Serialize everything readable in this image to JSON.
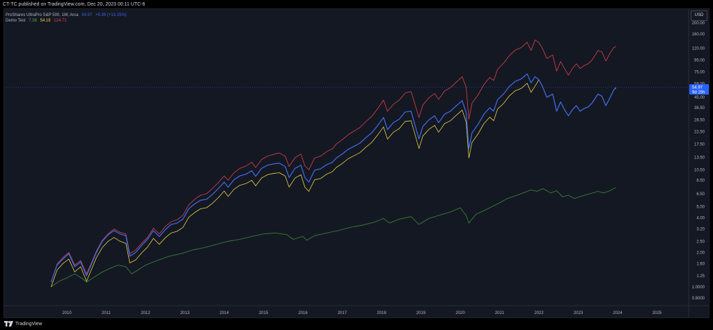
{
  "header": {
    "published_text": "CT-TC published on TradingView.com, Dec 20, 2023 00:11 UTC-6"
  },
  "legend": {
    "main": {
      "name": "ProShares UltraPro S&P 500, 1W, Arca",
      "price": "54.97",
      "change": "+6.39 (+13.15%)"
    },
    "indicator": {
      "name": "Demo Test",
      "v1": "7.36",
      "v2": "54.19",
      "v3": "124.71"
    }
  },
  "currency_button": "USD",
  "price_badge": {
    "price": "54.97",
    "countdown": "9d 15h"
  },
  "footer": {
    "brand": "TradingView"
  },
  "colors": {
    "background": "#141823",
    "red": "#e0424d",
    "blue": "#3d67e0",
    "yellow": "#e8d44a",
    "green": "#3e8a3a",
    "text": "#d1d4dc",
    "axis_text": "#b2b5be",
    "price_line": "#2962ff"
  },
  "chart_data": {
    "type": "line",
    "title": "",
    "xlabel": "",
    "ylabel": "",
    "y_scale": "log",
    "ylim": [
      0.7,
      250
    ],
    "xlim": [
      2009.5,
      2025.6
    ],
    "grid": false,
    "legend_placement": "top-left",
    "x_ticks": [
      "2010",
      "2011",
      "2012",
      "2013",
      "2014",
      "2015",
      "2016",
      "2017",
      "2018",
      "2019",
      "2020",
      "2021",
      "2022",
      "2023",
      "2024",
      "2025"
    ],
    "y_ticks": [
      "200.00",
      "160.00",
      "120.00",
      "95.00",
      "75.00",
      "59.00",
      "45.00",
      "36.50",
      "28.50",
      "22.50",
      "17.50",
      "13.50",
      "10.50",
      "8.50",
      "6.50",
      "5.00",
      "4.00",
      "3.20",
      "2.50",
      "2.00",
      "1.60",
      "1.25",
      "1.0000",
      "0.8000"
    ],
    "series": [
      {
        "name": "ProShares UltraPro S&P 500, 1W, Arca",
        "color": "#3d67e0",
        "x": [
          2009.6,
          2009.75,
          2009.9,
          2010.05,
          2010.2,
          2010.35,
          2010.5,
          2010.6,
          2010.75,
          2010.9,
          2011.05,
          2011.2,
          2011.35,
          2011.5,
          2011.6,
          2011.75,
          2011.9,
          2012.05,
          2012.2,
          2012.35,
          2012.5,
          2012.65,
          2012.8,
          2012.95,
          2013.1,
          2013.25,
          2013.4,
          2013.55,
          2013.7,
          2013.85,
          2014.0,
          2014.1,
          2014.25,
          2014.4,
          2014.55,
          2014.7,
          2014.8,
          2014.95,
          2015.1,
          2015.25,
          2015.4,
          2015.55,
          2015.65,
          2015.8,
          2015.95,
          2016.05,
          2016.15,
          2016.3,
          2016.45,
          2016.6,
          2016.75,
          2016.85,
          2017.0,
          2017.15,
          2017.3,
          2017.45,
          2017.6,
          2017.75,
          2017.9,
          2018.05,
          2018.15,
          2018.3,
          2018.45,
          2018.6,
          2018.75,
          2018.95,
          2019.05,
          2019.2,
          2019.35,
          2019.45,
          2019.6,
          2019.75,
          2019.9,
          2020.05,
          2020.15,
          2020.22,
          2020.3,
          2020.45,
          2020.6,
          2020.75,
          2020.85,
          2020.95,
          2021.1,
          2021.25,
          2021.4,
          2021.55,
          2021.7,
          2021.8,
          2021.9,
          2022.0,
          2022.1,
          2022.2,
          2022.35,
          2022.45,
          2022.55,
          2022.65,
          2022.75,
          2022.85,
          2022.95,
          2023.05,
          2023.15,
          2023.25,
          2023.35,
          2023.5,
          2023.6,
          2023.7,
          2023.8,
          2023.9,
          2023.96
        ],
        "values": [
          1.1,
          1.55,
          1.75,
          1.95,
          1.5,
          1.65,
          1.25,
          1.5,
          2.0,
          2.5,
          2.85,
          3.1,
          2.9,
          2.8,
          1.85,
          2.0,
          2.3,
          2.6,
          3.1,
          2.75,
          3.15,
          3.5,
          3.6,
          3.9,
          4.8,
          5.3,
          5.7,
          5.8,
          6.4,
          7.2,
          8.2,
          7.4,
          8.6,
          9.3,
          9.6,
          10.3,
          9.2,
          10.8,
          11.5,
          11.8,
          12.0,
          11.2,
          9.0,
          10.8,
          11.5,
          9.0,
          8.2,
          10.4,
          10.7,
          11.6,
          12.2,
          13.3,
          14.4,
          15.8,
          16.8,
          17.9,
          20.0,
          22.0,
          25.5,
          30.0,
          23.5,
          27.0,
          29.0,
          33.5,
          34.0,
          19.5,
          25.0,
          28.5,
          31.0,
          27.0,
          32.0,
          34.0,
          38.0,
          42.0,
          33.0,
          16.0,
          22.0,
          26.0,
          32.0,
          36.5,
          34.0,
          43.0,
          48.0,
          56.0,
          62.0,
          65.0,
          72.0,
          60.0,
          68.0,
          64.0,
          55.0,
          45.0,
          48.0,
          34.0,
          41.0,
          35.0,
          31.0,
          35.0,
          38.0,
          34.0,
          36.0,
          37.0,
          40.0,
          48.0,
          46.0,
          38.0,
          44.0,
          52.0,
          54.97
        ]
      },
      {
        "name": "Demo Test",
        "color": "#e0424d",
        "x": [
          2009.6,
          2009.75,
          2009.9,
          2010.05,
          2010.2,
          2010.35,
          2010.5,
          2010.6,
          2010.75,
          2010.9,
          2011.05,
          2011.2,
          2011.35,
          2011.5,
          2011.6,
          2011.75,
          2011.9,
          2012.05,
          2012.2,
          2012.35,
          2012.5,
          2012.65,
          2012.8,
          2012.95,
          2013.1,
          2013.25,
          2013.4,
          2013.55,
          2013.7,
          2013.85,
          2014.0,
          2014.1,
          2014.25,
          2014.4,
          2014.55,
          2014.7,
          2014.8,
          2014.95,
          2015.1,
          2015.25,
          2015.4,
          2015.55,
          2015.65,
          2015.8,
          2015.95,
          2016.05,
          2016.15,
          2016.3,
          2016.45,
          2016.6,
          2016.75,
          2016.85,
          2017.0,
          2017.15,
          2017.3,
          2017.45,
          2017.6,
          2017.75,
          2017.9,
          2018.05,
          2018.15,
          2018.3,
          2018.45,
          2018.6,
          2018.75,
          2018.95,
          2019.05,
          2019.2,
          2019.35,
          2019.45,
          2019.6,
          2019.75,
          2019.9,
          2020.05,
          2020.15,
          2020.22,
          2020.3,
          2020.45,
          2020.6,
          2020.75,
          2020.85,
          2020.95,
          2021.1,
          2021.25,
          2021.4,
          2021.55,
          2021.7,
          2021.8,
          2021.9,
          2022.0,
          2022.1,
          2022.2,
          2022.35,
          2022.45,
          2022.55,
          2022.65,
          2022.75,
          2022.85,
          2022.95,
          2023.05,
          2023.15,
          2023.25,
          2023.35,
          2023.5,
          2023.6,
          2023.7,
          2023.8,
          2023.9,
          2023.96
        ],
        "values": [
          1.1,
          1.58,
          1.8,
          2.0,
          1.55,
          1.7,
          1.3,
          1.55,
          2.05,
          2.55,
          2.9,
          3.2,
          3.0,
          2.9,
          1.95,
          2.1,
          2.4,
          2.7,
          3.25,
          2.9,
          3.35,
          3.7,
          3.85,
          4.2,
          5.2,
          5.8,
          6.3,
          6.5,
          7.2,
          8.1,
          9.3,
          8.5,
          9.9,
          10.8,
          11.3,
          12.2,
          11.0,
          12.9,
          13.8,
          14.3,
          14.7,
          13.8,
          11.2,
          13.4,
          14.4,
          11.4,
          10.5,
          13.3,
          13.8,
          15.1,
          16.0,
          17.6,
          19.2,
          21.2,
          22.8,
          24.5,
          27.6,
          30.6,
          35.8,
          42.5,
          34.0,
          39.0,
          42.5,
          49.0,
          50.5,
          30.0,
          38.5,
          44.5,
          48.5,
          43.0,
          51.0,
          54.5,
          61.0,
          68.0,
          55.0,
          29.0,
          40.0,
          47.0,
          58.0,
          67.0,
          63.0,
          79.0,
          89.0,
          104.0,
          116.0,
          122.0,
          136.0,
          115.0,
          142.0,
          135.0,
          118.0,
          98.0,
          105.0,
          76.0,
          92.0,
          80.0,
          70.0,
          80.0,
          88.0,
          80.0,
          85.0,
          88.0,
          95.0,
          115.0,
          112.0,
          93.0,
          108.0,
          122.0,
          124.71
        ]
      },
      {
        "name": "Demo Test",
        "color": "#e8d44a",
        "x": [
          2009.6,
          2009.75,
          2009.9,
          2010.05,
          2010.2,
          2010.35,
          2010.5,
          2010.6,
          2010.75,
          2010.9,
          2011.05,
          2011.2,
          2011.35,
          2011.5,
          2011.6,
          2011.75,
          2011.9,
          2012.05,
          2012.2,
          2012.35,
          2012.5,
          2012.65,
          2012.8,
          2012.95,
          2013.1,
          2013.25,
          2013.4,
          2013.55,
          2013.7,
          2013.85,
          2014.0,
          2014.1,
          2014.25,
          2014.4,
          2014.55,
          2014.7,
          2014.8,
          2014.95,
          2015.1,
          2015.25,
          2015.4,
          2015.55,
          2015.65,
          2015.8,
          2015.95,
          2016.05,
          2016.15,
          2016.3,
          2016.45,
          2016.6,
          2016.75,
          2016.85,
          2017.0,
          2017.15,
          2017.3,
          2017.45,
          2017.6,
          2017.75,
          2017.9,
          2018.05,
          2018.15,
          2018.3,
          2018.45,
          2018.6,
          2018.75,
          2018.95,
          2019.05,
          2019.2,
          2019.35,
          2019.45,
          2019.6,
          2019.75,
          2019.9,
          2020.05,
          2020.15,
          2020.22,
          2020.3,
          2020.45,
          2020.6,
          2020.75,
          2020.85,
          2020.95,
          2021.1,
          2021.25,
          2021.4,
          2021.55,
          2021.7,
          2021.8,
          2021.9,
          2022.0,
          2022.1,
          2022.2,
          2022.35,
          2022.45,
          2022.55,
          2022.65,
          2022.75,
          2022.85,
          2022.95,
          2023.05,
          2023.15,
          2023.25,
          2023.35,
          2023.5,
          2023.6,
          2023.7,
          2023.8,
          2023.9,
          2023.96
        ],
        "values": [
          1.0,
          1.4,
          1.6,
          1.75,
          1.35,
          1.5,
          1.12,
          1.35,
          1.8,
          2.2,
          2.5,
          2.7,
          2.5,
          2.4,
          1.62,
          1.72,
          1.98,
          2.22,
          2.65,
          2.35,
          2.68,
          2.95,
          3.05,
          3.3,
          4.05,
          4.45,
          4.8,
          4.9,
          5.35,
          6.0,
          6.85,
          6.15,
          7.1,
          7.7,
          7.95,
          8.5,
          7.6,
          8.9,
          9.5,
          9.75,
          9.9,
          9.25,
          7.4,
          8.9,
          9.5,
          7.4,
          6.8,
          8.6,
          8.8,
          9.6,
          10.1,
          11.0,
          11.9,
          13.1,
          13.9,
          14.8,
          16.5,
          18.2,
          21.1,
          24.8,
          19.4,
          22.3,
          24.0,
          27.7,
          28.1,
          16.1,
          20.7,
          23.6,
          25.6,
          22.3,
          26.5,
          28.1,
          31.4,
          34.7,
          27.3,
          13.3,
          18.2,
          21.5,
          26.5,
          30.2,
          28.1,
          35.6,
          39.7,
          46.3,
          51.3,
          53.8,
          59.6,
          49.6,
          56.3,
          64.0,
          55.0,
          45.0,
          48.0,
          34.0,
          41.0,
          35.0,
          31.0,
          35.0,
          38.0,
          34.0,
          36.0,
          37.0,
          40.0,
          48.0,
          46.0,
          38.0,
          44.0,
          52.0,
          54.19
        ]
      },
      {
        "name": "Demo Test",
        "color": "#3e8a3a",
        "x": [
          2009.6,
          2009.8,
          2010.0,
          2010.2,
          2010.4,
          2010.5,
          2010.7,
          2010.9,
          2011.1,
          2011.3,
          2011.5,
          2011.65,
          2011.8,
          2012.0,
          2012.3,
          2012.6,
          2012.9,
          2013.2,
          2013.5,
          2013.8,
          2014.1,
          2014.4,
          2014.7,
          2015.0,
          2015.3,
          2015.6,
          2015.75,
          2016.0,
          2016.1,
          2016.3,
          2016.6,
          2016.9,
          2017.2,
          2017.5,
          2017.8,
          2018.05,
          2018.2,
          2018.45,
          2018.75,
          2018.95,
          2019.2,
          2019.45,
          2019.75,
          2020.0,
          2020.15,
          2020.22,
          2020.4,
          2020.7,
          2020.95,
          2021.2,
          2021.5,
          2021.8,
          2021.95,
          2022.1,
          2022.3,
          2022.45,
          2022.6,
          2022.75,
          2022.9,
          2023.1,
          2023.3,
          2023.5,
          2023.65,
          2023.8,
          2023.96
        ],
        "values": [
          1.0,
          1.12,
          1.2,
          1.3,
          1.18,
          1.1,
          1.22,
          1.35,
          1.45,
          1.55,
          1.5,
          1.3,
          1.4,
          1.55,
          1.7,
          1.85,
          1.95,
          2.1,
          2.2,
          2.35,
          2.5,
          2.6,
          2.75,
          2.9,
          2.95,
          2.85,
          2.6,
          2.75,
          2.55,
          2.8,
          2.95,
          3.1,
          3.3,
          3.45,
          3.65,
          3.95,
          3.6,
          3.9,
          4.1,
          3.5,
          3.95,
          4.2,
          4.5,
          4.9,
          4.2,
          3.6,
          4.3,
          4.8,
          5.3,
          5.9,
          6.4,
          7.0,
          6.8,
          7.2,
          6.6,
          6.9,
          6.1,
          6.3,
          5.9,
          6.2,
          6.5,
          6.8,
          6.6,
          6.9,
          7.36
        ]
      }
    ]
  }
}
